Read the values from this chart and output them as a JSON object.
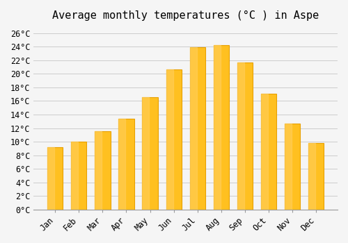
{
  "title": "Average monthly temperatures (°C ) in Aspe",
  "months": [
    "Jan",
    "Feb",
    "Mar",
    "Apr",
    "May",
    "Jun",
    "Jul",
    "Aug",
    "Sep",
    "Oct",
    "Nov",
    "Dec"
  ],
  "temperatures": [
    9.2,
    10.0,
    11.5,
    13.4,
    16.6,
    20.7,
    23.9,
    24.2,
    21.7,
    17.1,
    12.7,
    9.8
  ],
  "bar_color": "#FFC020",
  "bar_edge_color": "#E8A000",
  "ylim": [
    0,
    27
  ],
  "yticks": [
    0,
    2,
    4,
    6,
    8,
    10,
    12,
    14,
    16,
    18,
    20,
    22,
    24,
    26
  ],
  "ytick_labels": [
    "0°C",
    "2°C",
    "4°C",
    "6°C",
    "8°C",
    "10°C",
    "12°C",
    "14°C",
    "16°C",
    "18°C",
    "20°C",
    "22°C",
    "24°C",
    "26°C"
  ],
  "background_color": "#F5F5F5",
  "grid_color": "#CCCCCC",
  "font_family": "monospace",
  "title_fontsize": 11,
  "tick_fontsize": 8.5
}
